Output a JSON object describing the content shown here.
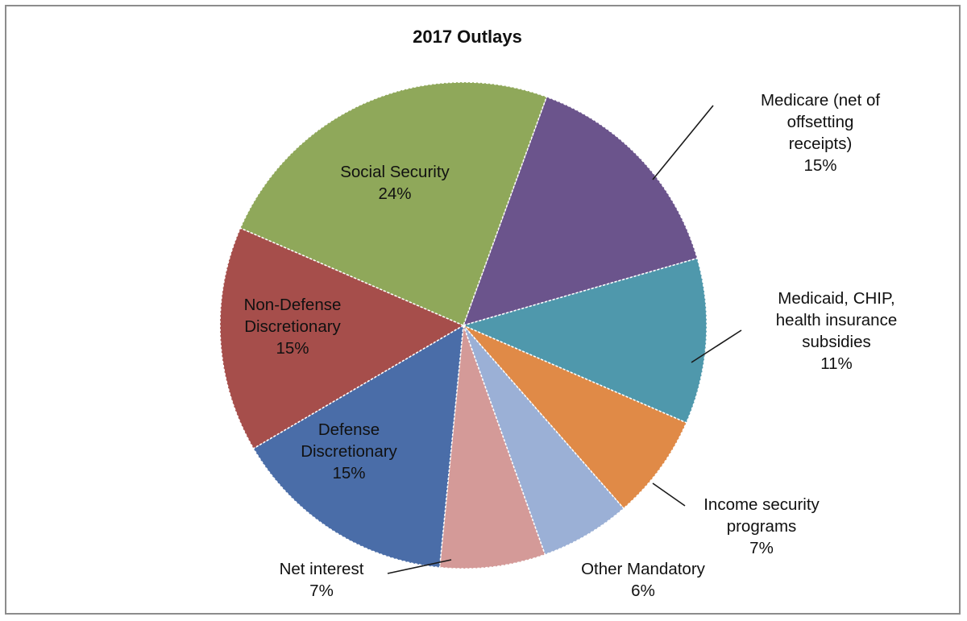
{
  "chart_data": {
    "type": "pie",
    "title": "2017 Outlays",
    "slices": [
      {
        "name": "Medicare (net of offsetting receipts)",
        "label_lines": [
          "Medicare (net of",
          "offsetting",
          "receipts)"
        ],
        "pct_label": "15%",
        "value": 15,
        "color": "#6b548c"
      },
      {
        "name": "Medicaid, CHIP, health insurance subsidies",
        "label_lines": [
          "Medicaid, CHIP,",
          "health insurance",
          "subsidies"
        ],
        "pct_label": "11%",
        "value": 11,
        "color": "#4f98ac"
      },
      {
        "name": "Income security programs",
        "label_lines": [
          "Income security",
          "programs"
        ],
        "pct_label": "7%",
        "value": 7,
        "color": "#e08a47"
      },
      {
        "name": "Other Mandatory",
        "label_lines": [
          "Other Mandatory"
        ],
        "pct_label": "6%",
        "value": 6,
        "color": "#9bb0d6"
      },
      {
        "name": "Net interest",
        "label_lines": [
          "Net interest"
        ],
        "pct_label": "7%",
        "value": 7,
        "color": "#d49a98"
      },
      {
        "name": "Defense Discretionary",
        "label_lines": [
          "Defense",
          "Discretionary"
        ],
        "pct_label": "15%",
        "value": 15,
        "color": "#4a6da8"
      },
      {
        "name": "Non-Defense Discretionary",
        "label_lines": [
          "Non-Defense",
          "Discretionary"
        ],
        "pct_label": "15%",
        "value": 15,
        "color": "#a64e4b"
      },
      {
        "name": "Social Security",
        "label_lines": [
          "Social Security"
        ],
        "pct_label": "24%",
        "value": 24,
        "color": "#8fa85a"
      }
    ]
  }
}
